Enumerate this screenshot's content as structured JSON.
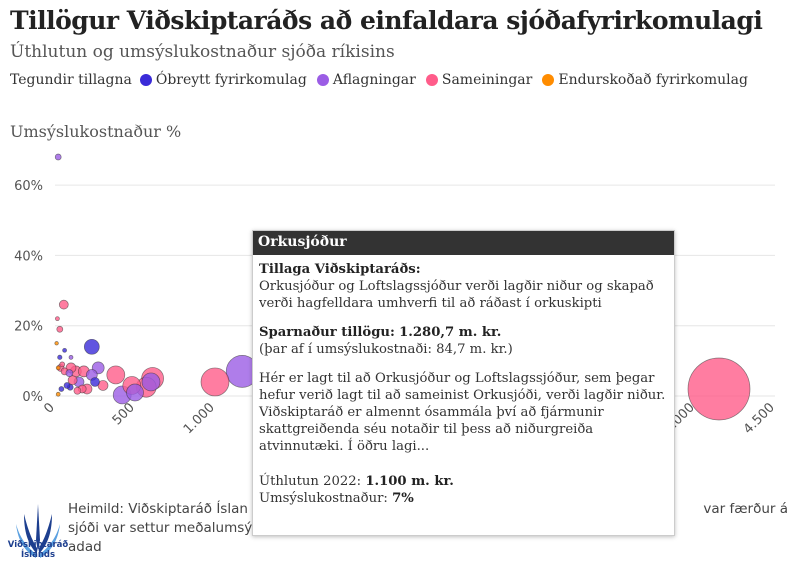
{
  "header": {
    "title": "Tillögur Viðskiptaráðs að einfaldara sjóðafyrirkomulagi",
    "subtitle": "Úthlutun og umsýslukostnaður sjóða ríkisins"
  },
  "legend": {
    "title": "Tegundir tillagna",
    "items": [
      {
        "label": "Óbreytt fyrirkomulag",
        "color": "#3a2bd8"
      },
      {
        "label": "Aflagningar",
        "color": "#9b5de5"
      },
      {
        "label": "Sameiningar",
        "color": "#ff5c8a"
      },
      {
        "label": "Endurskoðað fyrirkomulag",
        "color": "#ff8c00"
      }
    ]
  },
  "chart_data": {
    "type": "scatter",
    "title": "Tillögur Viðskiptaráðs að einfaldara sjóðafyrirkomulagi",
    "subtitle": "Úthlutun og umsýslukostnaður sjóða ríkisins",
    "ylabel": "Umsýslukostnaður %",
    "xlabel": "",
    "xlim": [
      0,
      4500
    ],
    "ylim": [
      0,
      70
    ],
    "xticks": [
      0,
      500,
      1000,
      4000,
      4500
    ],
    "xtick_labels": [
      "0",
      "500",
      "1.000",
      "4.000",
      "4.500"
    ],
    "yticks": [
      0,
      20,
      40,
      60
    ],
    "ytick_labels": [
      "0%",
      "20%",
      "40%",
      "60%"
    ],
    "size_encoding": "Sparnaður tillögu",
    "points": [
      {
        "x": 20,
        "y": 68,
        "r": 3,
        "type": 1
      },
      {
        "x": 55,
        "y": 26,
        "r": 4.5,
        "type": 2
      },
      {
        "x": 15,
        "y": 22,
        "r": 2,
        "type": 2
      },
      {
        "x": 30,
        "y": 19,
        "r": 3,
        "type": 2
      },
      {
        "x": 10,
        "y": 15,
        "r": 1.8,
        "type": 3
      },
      {
        "x": 30,
        "y": 11,
        "r": 2.2,
        "type": 0
      },
      {
        "x": 45,
        "y": 9,
        "r": 2.5,
        "type": 2
      },
      {
        "x": 20,
        "y": 8,
        "r": 2,
        "type": 3
      },
      {
        "x": 35,
        "y": 8,
        "r": 3.5,
        "type": 2
      },
      {
        "x": 60,
        "y": 7,
        "r": 3.5,
        "type": 2
      },
      {
        "x": 90,
        "y": 6.5,
        "r": 3.5,
        "type": 1
      },
      {
        "x": 100,
        "y": 8,
        "r": 5,
        "type": 2
      },
      {
        "x": 130,
        "y": 7,
        "r": 5.5,
        "type": 2
      },
      {
        "x": 110,
        "y": 4.5,
        "r": 4.5,
        "type": 2
      },
      {
        "x": 150,
        "y": 4,
        "r": 5,
        "type": 1
      },
      {
        "x": 180,
        "y": 7,
        "r": 5.5,
        "type": 2
      },
      {
        "x": 230,
        "y": 6,
        "r": 5.5,
        "type": 1
      },
      {
        "x": 270,
        "y": 8,
        "r": 6,
        "type": 1
      },
      {
        "x": 250,
        "y": 4,
        "r": 4.5,
        "type": 0
      },
      {
        "x": 300,
        "y": 3,
        "r": 5,
        "type": 2
      },
      {
        "x": 200,
        "y": 2,
        "r": 5,
        "type": 2
      },
      {
        "x": 170,
        "y": 2,
        "r": 4,
        "type": 2
      },
      {
        "x": 140,
        "y": 1.5,
        "r": 3.5,
        "type": 2
      },
      {
        "x": 95,
        "y": 2.5,
        "r": 3,
        "type": 0
      },
      {
        "x": 75,
        "y": 3,
        "r": 3,
        "type": 0
      },
      {
        "x": 40,
        "y": 2,
        "r": 2.5,
        "type": 0
      },
      {
        "x": 60,
        "y": 13,
        "r": 2,
        "type": 0
      },
      {
        "x": 100,
        "y": 11,
        "r": 2,
        "type": 1
      },
      {
        "x": 20,
        "y": 0.5,
        "r": 2,
        "type": 3
      },
      {
        "x": 230,
        "y": 14,
        "r": 7.5,
        "type": 0
      },
      {
        "x": 380,
        "y": 6,
        "r": 9,
        "type": 2
      },
      {
        "x": 420,
        "y": 0.3,
        "r": 9,
        "type": 1
      },
      {
        "x": 500,
        "y": 1,
        "r": 8.5,
        "type": 1
      },
      {
        "x": 480,
        "y": 3,
        "r": 9,
        "type": 2
      },
      {
        "x": 570,
        "y": 2.5,
        "r": 10,
        "type": 2
      },
      {
        "x": 610,
        "y": 5,
        "r": 11,
        "type": 2
      },
      {
        "x": 600,
        "y": 4,
        "r": 9,
        "type": 1
      },
      {
        "x": 1000,
        "y": 4,
        "r": 14,
        "type": 2
      },
      {
        "x": 1170,
        "y": 7,
        "r": 16,
        "type": 1
      },
      {
        "x": 4150,
        "y": 2,
        "r": 31,
        "type": 2
      }
    ]
  },
  "tooltip": {
    "title": "Orkusjóður",
    "proposal_heading": "Tillaga Viðskiptaráðs:",
    "proposal_text": "Orkusjóður og Loftslagssjóður verði lagðir niður og skapað verði hagfelldara umhverfi til að ráðast í orkuskipti",
    "savings_label": "Sparnaður tillögu:",
    "savings_value": "1.280,7 m. kr.",
    "savings_note": "(þar af í umsýslukostnaði: 84,7 m. kr.)",
    "description": "Hér er lagt til að Orkusjóður og Loftslagssjóður, sem þegar hefur verið lagt til að sameinist Orkusjóði, verði lagðir niður. Viðskiptaráð er almennt ósammála því að fjármunir skattgreiðenda séu notaðir til þess að niðurgreiða atvinnutæki. Í öðru lagi...",
    "allocation_label": "Úthlutun 2022:",
    "allocation_value": "1.100 m. kr.",
    "cost_label": "Umsýslukostnaður:",
    "cost_value": "7%"
  },
  "footer": {
    "source_visible_start": "Heimild: Viðskiptaráð Íslan",
    "source_visible_right": "var færður á",
    "source_line2": "sjóði var settur meðalumsý",
    "source_line3": "adad",
    "logo_text_line1": "Viðskiptaráð",
    "logo_text_line2": "Íslands"
  }
}
